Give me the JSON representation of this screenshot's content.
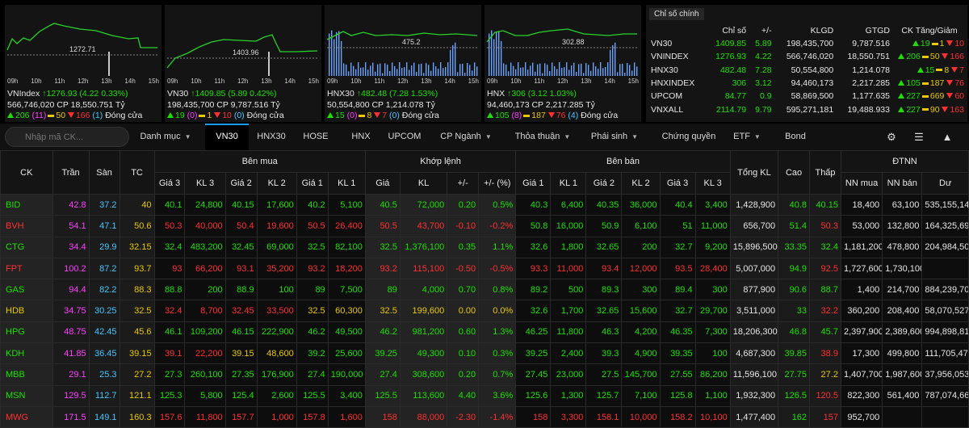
{
  "mini_charts": [
    {
      "name": "VNIndex",
      "ref_value": "1272.71",
      "hours": [
        "09h",
        "10h",
        "11h",
        "12h",
        "13h",
        "14h",
        "15h"
      ],
      "index": "1276.93",
      "change": "(4.22 0.33%)",
      "volume": "566,746,020 CP",
      "value": "18,550.751 Tỷ",
      "adv": "206",
      "ceil_count": "(11)",
      "ref_count": "50",
      "dec": "166",
      "floor_count": "(1)",
      "status": "Đóng cửa"
    },
    {
      "name": "VN30",
      "ref_value": "1403.96",
      "hours": [
        "09h",
        "10h",
        "11h",
        "12h",
        "13h",
        "14h",
        "15h"
      ],
      "index": "1409.85",
      "change": "(5.89 0.42%)",
      "volume": "198,435,700 CP",
      "value": "9,787.516 Tỷ",
      "adv": "19",
      "ceil_count": "(0)",
      "ref_count": "1",
      "dec": "10",
      "floor_count": "(0)",
      "status": "Đóng cửa"
    },
    {
      "name": "HNX30",
      "ref_value": "475.2",
      "hours": [
        "09h",
        "10h",
        "11h",
        "12h",
        "13h",
        "14h",
        "15h"
      ],
      "index": "482.48",
      "change": "(7.28 1.53%)",
      "volume": "50,554,800 CP",
      "value": "1,214.078 Tỷ",
      "adv": "15",
      "ceil_count": "(0)",
      "ref_count": "8",
      "dec": "7",
      "floor_count": "(0)",
      "status": "Đóng cửa"
    },
    {
      "name": "HNX",
      "ref_value": "302.88",
      "hours": [
        "09h",
        "10h",
        "11h",
        "12h",
        "13h",
        "14h",
        "15h"
      ],
      "index": "306",
      "change": "(3.12 1.03%)",
      "volume": "94,460,173 CP",
      "value": "2,217.285 Tỷ",
      "adv": "105",
      "ceil_count": "(8)",
      "ref_count": "187",
      "dec": "76",
      "floor_count": "(4)",
      "status": "Đóng cửa"
    }
  ],
  "summary": {
    "title": "Chỉ số chính",
    "headers": [
      "",
      "Chỉ số",
      "+/-",
      "KLGD",
      "GTGD",
      "CK Tăng/Giảm"
    ],
    "rows": [
      {
        "name": "VN30",
        "index": "1409.85",
        "change": "5.89",
        "vol": "198,435,700",
        "val": "9,787.516",
        "adv": "19",
        "ref": "1",
        "dec": "10"
      },
      {
        "name": "VNINDEX",
        "index": "1276.93",
        "change": "4.22",
        "vol": "566,746,020",
        "val": "18,550.751",
        "adv": "206",
        "ref": "50",
        "dec": "166"
      },
      {
        "name": "HNX30",
        "index": "482.48",
        "change": "7.28",
        "vol": "50,554,800",
        "val": "1,214.078",
        "adv": "15",
        "ref": "8",
        "dec": "7"
      },
      {
        "name": "HNXINDEX",
        "index": "306",
        "change": "3.12",
        "vol": "94,460,173",
        "val": "2,217.285",
        "adv": "105",
        "ref": "187",
        "dec": "76"
      },
      {
        "name": "UPCOM",
        "index": "84.77",
        "change": "0.9",
        "vol": "58,869,500",
        "val": "1,177.635",
        "adv": "227",
        "ref": "669",
        "dec": "60"
      },
      {
        "name": "VNXALL",
        "index": "2114.79",
        "change": "9.79",
        "vol": "595,271,181",
        "val": "19,488.933",
        "adv": "227",
        "ref": "90",
        "dec": "163"
      }
    ]
  },
  "nav": {
    "search_placeholder": "Nhập mã CK...",
    "tabs": [
      {
        "label": "Danh mục",
        "caret": true
      },
      {
        "label": "VN30",
        "active": true
      },
      {
        "label": "HNX30"
      },
      {
        "label": "HOSE"
      },
      {
        "label": "HNX"
      },
      {
        "label": "UPCOM"
      },
      {
        "label": "CP Ngành",
        "caret": true
      },
      {
        "label": "Thỏa thuận",
        "caret": true
      },
      {
        "label": "Phái sinh",
        "caret": true
      },
      {
        "label": "Chứng quyền"
      },
      {
        "label": "ETF",
        "caret": true
      },
      {
        "label": "Bond"
      }
    ]
  },
  "board": {
    "group_headers": {
      "buy": "Bên mua",
      "match": "Khớp lệnh",
      "sell": "Bên bán",
      "foreign": "ĐTNN"
    },
    "headers": {
      "ck": "CK",
      "ceil": "Trần",
      "floor": "Sàn",
      "ref": "TC",
      "g3": "Giá 3",
      "kl3": "KL 3",
      "g2": "Giá 2",
      "kl2": "KL 2",
      "g1": "Giá 1",
      "kl1": "KL 1",
      "mp": "Giá",
      "mkl": "KL",
      "chg": "+/-",
      "pct": "+/- (%)",
      "s1": "Giá 1",
      "skl1": "KL 1",
      "s2": "Giá 2",
      "skl2": "KL 2",
      "s3": "Giá 3",
      "skl3": "KL 3",
      "total": "Tổng KL",
      "high": "Cao",
      "low": "Thấp",
      "nnbuy": "NN mua",
      "nnsell": "NN bán",
      "room": "Dư"
    },
    "rows": [
      {
        "ck": "BID",
        "c": "up",
        "ceil": "42.8",
        "floor": "37.2",
        "ref": "40",
        "b": [
          [
            "40.1",
            "24,800",
            "up"
          ],
          [
            "40.15",
            "17,600",
            "up"
          ],
          [
            "40.2",
            "5,100",
            "up"
          ]
        ],
        "m": [
          "40.5",
          "72,000",
          "0.20",
          "0.5%",
          "up"
        ],
        "s": [
          [
            "40.3",
            "6,400",
            "up"
          ],
          [
            "40.35",
            "36,000",
            "up"
          ],
          [
            "40.4",
            "3,400",
            "up"
          ]
        ],
        "total": "1,428,900",
        "high": [
          "40.8",
          "up"
        ],
        "low": [
          "40.15",
          "up"
        ],
        "nn": [
          "18,400",
          "63,100",
          "535,155,146"
        ]
      },
      {
        "ck": "BVH",
        "c": "down",
        "ceil": "54.1",
        "floor": "47.1",
        "ref": "50.6",
        "b": [
          [
            "50.3",
            "40,000",
            "down"
          ],
          [
            "50.4",
            "19,600",
            "down"
          ],
          [
            "50.5",
            "26,400",
            "down"
          ]
        ],
        "m": [
          "50.5",
          "43,700",
          "-0.10",
          "-0.2%",
          "down"
        ],
        "s": [
          [
            "50.8",
            "16,000",
            "up"
          ],
          [
            "50.9",
            "6,100",
            "up"
          ],
          [
            "51",
            "11,000",
            "up"
          ]
        ],
        "total": "656,700",
        "high": [
          "51.4",
          "up"
        ],
        "low": [
          "50.3",
          "down"
        ],
        "nn": [
          "53,000",
          "132,800",
          "164,325,690"
        ]
      },
      {
        "ck": "CTG",
        "c": "up",
        "ceil": "34.4",
        "floor": "29.9",
        "ref": "32.15",
        "b": [
          [
            "32.4",
            "483,200",
            "up"
          ],
          [
            "32.45",
            "69,000",
            "up"
          ],
          [
            "32.5",
            "82,100",
            "up"
          ]
        ],
        "m": [
          "32.5",
          "1,376,100",
          "0.35",
          "1.1%",
          "up"
        ],
        "s": [
          [
            "32.6",
            "1,800",
            "up"
          ],
          [
            "32.65",
            "200",
            "up"
          ],
          [
            "32.7",
            "9,200",
            "up"
          ]
        ],
        "total": "15,896,500",
        "high": [
          "33.35",
          "up"
        ],
        "low": [
          "32.4",
          "up"
        ],
        "nn": [
          "1,181,200",
          "478,800",
          "204,984,500"
        ]
      },
      {
        "ck": "FPT",
        "c": "down",
        "ceil": "100.2",
        "floor": "87.2",
        "ref": "93.7",
        "b": [
          [
            "93",
            "66,200",
            "down"
          ],
          [
            "93.1",
            "35,200",
            "down"
          ],
          [
            "93.2",
            "18,200",
            "down"
          ]
        ],
        "m": [
          "93.2",
          "115,100",
          "-0.50",
          "-0.5%",
          "down"
        ],
        "s": [
          [
            "93.3",
            "11,000",
            "down"
          ],
          [
            "93.4",
            "12,000",
            "down"
          ],
          [
            "93.5",
            "28,400",
            "down"
          ]
        ],
        "total": "5,007,000",
        "high": [
          "94.9",
          "up"
        ],
        "low": [
          "92.5",
          "down"
        ],
        "nn": [
          "1,727,600",
          "1,730,100",
          ""
        ]
      },
      {
        "ck": "GAS",
        "c": "up",
        "ceil": "94.4",
        "floor": "82.2",
        "ref": "88.3",
        "b": [
          [
            "88.8",
            "200",
            "up"
          ],
          [
            "88.9",
            "100",
            "up"
          ],
          [
            "89",
            "7,500",
            "up"
          ]
        ],
        "m": [
          "89",
          "4,000",
          "0.70",
          "0.8%",
          "up"
        ],
        "s": [
          [
            "89.2",
            "500",
            "up"
          ],
          [
            "89.3",
            "300",
            "up"
          ],
          [
            "89.4",
            "300",
            "up"
          ]
        ],
        "total": "877,900",
        "high": [
          "90.6",
          "up"
        ],
        "low": [
          "88.7",
          "up"
        ],
        "nn": [
          "1,400",
          "214,700",
          "884,239,702"
        ]
      },
      {
        "ck": "HDB",
        "c": "ref",
        "ceil": "34.75",
        "floor": "30.25",
        "ref": "32.5",
        "b": [
          [
            "32.4",
            "8,700",
            "down"
          ],
          [
            "32.45",
            "33,500",
            "down"
          ],
          [
            "32.5",
            "60,300",
            "ref"
          ]
        ],
        "m": [
          "32.5",
          "199,600",
          "0.00",
          "0.0%",
          "ref"
        ],
        "s": [
          [
            "32.6",
            "1,700",
            "up"
          ],
          [
            "32.65",
            "15,600",
            "up"
          ],
          [
            "32.7",
            "29,700",
            "up"
          ]
        ],
        "total": "3,511,000",
        "high": [
          "33",
          "up"
        ],
        "low": [
          "32.2",
          "down"
        ],
        "nn": [
          "360,200",
          "208,400",
          "58,070,527"
        ]
      },
      {
        "ck": "HPG",
        "c": "up",
        "ceil": "48.75",
        "floor": "42.45",
        "ref": "45.6",
        "b": [
          [
            "46.1",
            "109,200",
            "up"
          ],
          [
            "46.15",
            "222,900",
            "up"
          ],
          [
            "46.2",
            "49,500",
            "up"
          ]
        ],
        "m": [
          "46.2",
          "981,200",
          "0.60",
          "1.3%",
          "up"
        ],
        "s": [
          [
            "46.25",
            "11,800",
            "up"
          ],
          [
            "46.3",
            "4,200",
            "up"
          ],
          [
            "46.35",
            "7,300",
            "up"
          ]
        ],
        "total": "18,206,300",
        "high": [
          "46.8",
          "up"
        ],
        "low": [
          "45.7",
          "up"
        ],
        "nn": [
          "2,397,900",
          "2,389,600",
          "994,898,816"
        ]
      },
      {
        "ck": "KDH",
        "c": "up",
        "ceil": "41.85",
        "floor": "36.45",
        "ref": "39.15",
        "b": [
          [
            "39.1",
            "22,200",
            "down"
          ],
          [
            "39.15",
            "48,600",
            "ref"
          ],
          [
            "39.2",
            "25,600",
            "up"
          ]
        ],
        "m": [
          "39.25",
          "49,300",
          "0.10",
          "0.3%",
          "up"
        ],
        "s": [
          [
            "39.25",
            "2,400",
            "up"
          ],
          [
            "39.3",
            "4,900",
            "up"
          ],
          [
            "39.35",
            "100",
            "up"
          ]
        ],
        "total": "4,687,300",
        "high": [
          "39.85",
          "up"
        ],
        "low": [
          "38.9",
          "down"
        ],
        "nn": [
          "17,300",
          "499,800",
          "111,705,478"
        ]
      },
      {
        "ck": "MBB",
        "c": "up",
        "ceil": "29.1",
        "floor": "25.3",
        "ref": "27.2",
        "b": [
          [
            "27.3",
            "260,100",
            "up"
          ],
          [
            "27.35",
            "176,900",
            "up"
          ],
          [
            "27.4",
            "190,000",
            "up"
          ]
        ],
        "m": [
          "27.4",
          "308,600",
          "0.20",
          "0.7%",
          "up"
        ],
        "s": [
          [
            "27.45",
            "23,000",
            "up"
          ],
          [
            "27.5",
            "145,700",
            "up"
          ],
          [
            "27.55",
            "86,200",
            "up"
          ]
        ],
        "total": "11,596,100",
        "high": [
          "27.75",
          "up"
        ],
        "low": [
          "27.2",
          "ref"
        ],
        "nn": [
          "1,407,700",
          "1,987,600",
          "37,956,053"
        ]
      },
      {
        "ck": "MSN",
        "c": "up",
        "ceil": "129.5",
        "floor": "112.7",
        "ref": "121.1",
        "b": [
          [
            "125.3",
            "5,800",
            "up"
          ],
          [
            "125.4",
            "2,600",
            "up"
          ],
          [
            "125.5",
            "3,400",
            "up"
          ]
        ],
        "m": [
          "125.5",
          "113,600",
          "4.40",
          "3.6%",
          "up"
        ],
        "s": [
          [
            "125.6",
            "1,300",
            "up"
          ],
          [
            "125.7",
            "7,100",
            "up"
          ],
          [
            "125.8",
            "1,100",
            "up"
          ]
        ],
        "total": "1,932,300",
        "high": [
          "126.5",
          "up"
        ],
        "low": [
          "120.5",
          "down"
        ],
        "nn": [
          "822,300",
          "561,400",
          "787,074,666"
        ]
      },
      {
        "ck": "MWG",
        "c": "down",
        "ceil": "171.5",
        "floor": "149.1",
        "ref": "160.3",
        "b": [
          [
            "157.6",
            "11,800",
            "down"
          ],
          [
            "157.7",
            "1,000",
            "down"
          ],
          [
            "157.8",
            "1,600",
            "down"
          ]
        ],
        "m": [
          "158",
          "88,000",
          "-2.30",
          "-1.4%",
          "down"
        ],
        "s": [
          [
            "158",
            "3,300",
            "down"
          ],
          [
            "158.1",
            "10,000",
            "down"
          ],
          [
            "158.2",
            "10,100",
            "down"
          ]
        ],
        "total": "1,477,400",
        "high": [
          "162",
          "up"
        ],
        "low": [
          "157",
          "down"
        ],
        "nn": [
          "952,700",
          "",
          ""
        ]
      }
    ]
  },
  "colors": {
    "up": "#1ee000",
    "down": "#ff3030",
    "ref": "#e8c800",
    "ceil": "#ff40ff",
    "floor": "#46c6ff",
    "accent": "#1a9cff"
  },
  "icons": [
    "search-icon",
    "settings-icon",
    "menu-icon",
    "scroll-top-icon",
    "caret-down-icon"
  ]
}
